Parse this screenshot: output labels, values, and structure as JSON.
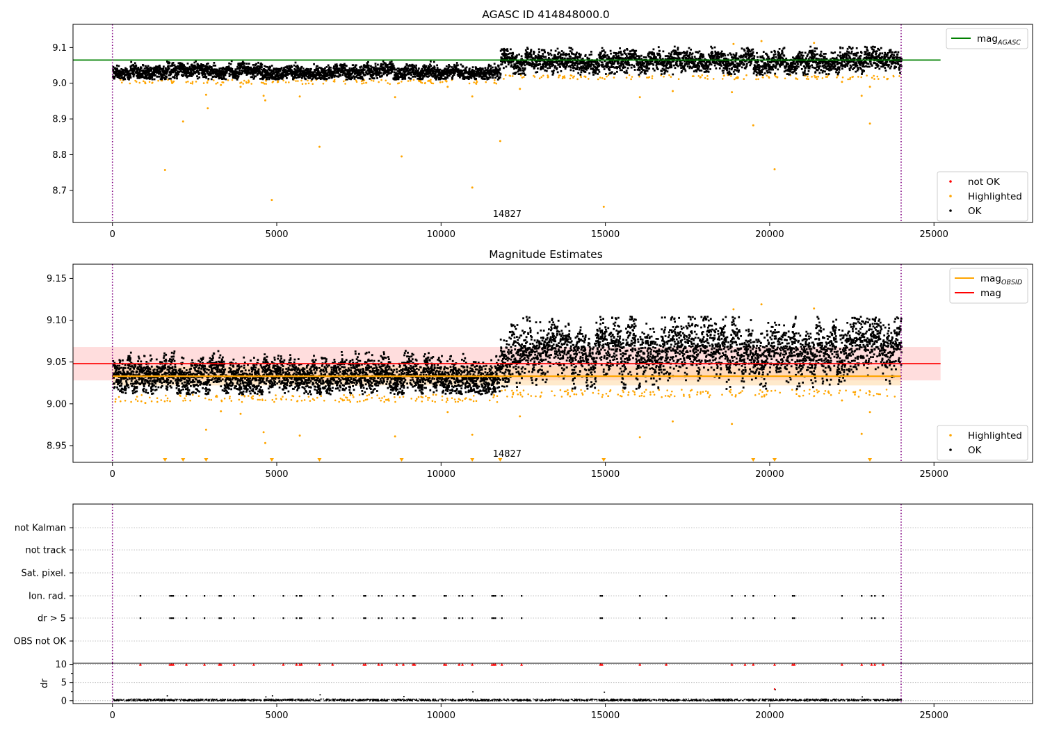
{
  "chart_data": [
    {
      "type": "scatter",
      "title": "AGASC ID 414848000.0",
      "xlim": [
        -1200,
        28000
      ],
      "ylim": [
        8.61,
        9.165
      ],
      "xticks": [
        0,
        5000,
        10000,
        15000,
        20000,
        25000
      ],
      "yticks": [
        8.7,
        8.8,
        8.9,
        9.0,
        9.1
      ],
      "vlines": [
        0,
        24000
      ],
      "annotation": "14827",
      "annotation_x": 11800,
      "mag_agasc": 9.065,
      "segments": [
        {
          "x0": 0,
          "x1": 11800,
          "center": 9.035,
          "lo": 9.012,
          "hi": 9.065
        },
        {
          "x0": 11800,
          "x1": 24000,
          "center": 9.063,
          "lo": 9.025,
          "hi": 9.105
        }
      ],
      "highlighted_points": [
        [
          1000,
          9.0
        ],
        [
          1600,
          8.757
        ],
        [
          2150,
          8.893
        ],
        [
          2850,
          8.968
        ],
        [
          2900,
          8.93
        ],
        [
          3300,
          8.995
        ],
        [
          3900,
          8.99
        ],
        [
          4600,
          8.965
        ],
        [
          4650,
          8.952
        ],
        [
          4850,
          8.673
        ],
        [
          5700,
          8.963
        ],
        [
          6300,
          8.822
        ],
        [
          8600,
          8.961
        ],
        [
          8800,
          8.795
        ],
        [
          10200,
          8.99
        ],
        [
          10950,
          8.708
        ],
        [
          10950,
          8.963
        ],
        [
          11800,
          8.838
        ],
        [
          12400,
          8.984
        ],
        [
          14950,
          8.654
        ],
        [
          16050,
          8.961
        ],
        [
          17050,
          8.978
        ],
        [
          18850,
          8.975
        ],
        [
          18900,
          9.11
        ],
        [
          19500,
          8.882
        ],
        [
          19750,
          9.118
        ],
        [
          20150,
          8.759
        ],
        [
          21350,
          9.113
        ],
        [
          22200,
          9.004
        ],
        [
          22800,
          8.965
        ],
        [
          23050,
          8.99
        ],
        [
          23050,
          8.887
        ]
      ],
      "series": [
        {
          "name": "mag_AGASC",
          "color": "#008000",
          "kind": "line"
        },
        {
          "name": "not OK",
          "color": "#ff0000",
          "kind": "marker"
        },
        {
          "name": "Highlighted",
          "color": "#ffa500",
          "kind": "marker"
        },
        {
          "name": "OK",
          "color": "#000000",
          "kind": "marker"
        }
      ],
      "legend_upper": "upper right",
      "legend_lower": "lower right"
    },
    {
      "type": "scatter",
      "title": "Magnitude Estimates",
      "xlim": [
        -1200,
        28000
      ],
      "ylim": [
        8.93,
        9.167
      ],
      "xticks": [
        0,
        5000,
        10000,
        15000,
        20000,
        25000
      ],
      "yticks": [
        8.95,
        9.0,
        9.05,
        9.1,
        9.15
      ],
      "vlines": [
        0,
        24000
      ],
      "annotation": "14827",
      "annotation_x": 11800,
      "mag": 9.048,
      "mag_band": [
        9.028,
        9.068
      ],
      "mag_obsid": 9.033,
      "mag_obsid_band": [
        9.022,
        9.045
      ],
      "segments": [
        {
          "x0": 0,
          "x1": 11800,
          "center": 9.035,
          "lo": 9.012,
          "hi": 9.065
        },
        {
          "x0": 11800,
          "x1": 24000,
          "center": 9.063,
          "lo": 9.018,
          "hi": 9.105
        }
      ],
      "highlighted_points": [
        [
          1000,
          9.001
        ],
        [
          2850,
          8.969
        ],
        [
          3300,
          8.991
        ],
        [
          3900,
          8.988
        ],
        [
          4600,
          8.966
        ],
        [
          4650,
          8.953
        ],
        [
          5700,
          8.962
        ],
        [
          8600,
          8.961
        ],
        [
          10200,
          8.99
        ],
        [
          10950,
          8.963
        ],
        [
          12400,
          8.985
        ],
        [
          16050,
          8.96
        ],
        [
          17050,
          8.979
        ],
        [
          18850,
          8.976
        ],
        [
          18900,
          9.113
        ],
        [
          19750,
          9.119
        ],
        [
          21350,
          9.114
        ],
        [
          22200,
          9.004
        ],
        [
          22800,
          8.964
        ],
        [
          23050,
          8.99
        ]
      ],
      "below_range_markers": [
        1600,
        2150,
        2850,
        4850,
        6300,
        8800,
        10950,
        11800,
        14950,
        19500,
        20150,
        23050
      ],
      "series": [
        {
          "name": "mag_OBSID",
          "color": "#ffa500",
          "kind": "line"
        },
        {
          "name": "mag",
          "color": "#ff0000",
          "kind": "line"
        },
        {
          "name": "Highlighted",
          "color": "#ffa500",
          "kind": "marker"
        },
        {
          "name": "OK",
          "color": "#000000",
          "kind": "marker"
        }
      ],
      "legend_upper": "upper right",
      "legend_lower": "lower right"
    },
    {
      "type": "scatter",
      "title": "",
      "xlim": [
        -1200,
        28000
      ],
      "categories": [
        "not Kalman",
        "not track",
        "Sat. pixel.",
        "Ion. rad.",
        "dr > 5",
        "OBS not OK"
      ],
      "flag_x": [
        850,
        1750,
        1800,
        1850,
        2250,
        2800,
        3250,
        3300,
        3700,
        4300,
        5200,
        5600,
        5700,
        5750,
        6300,
        6700,
        7650,
        7700,
        8100,
        8200,
        8650,
        8850,
        9150,
        9200,
        10100,
        10150,
        10550,
        10650,
        10950,
        11550,
        11600,
        11650,
        11850,
        12450,
        14850,
        14900,
        16050,
        16850,
        18850,
        19250,
        19500,
        20150,
        20700,
        20750,
        22200,
        22800,
        23100,
        23200,
        23450
      ],
      "vlines": [
        0,
        24000
      ],
      "dr_ylim": [
        -0.8,
        10.3
      ],
      "dr_yticks": [
        0,
        5,
        10
      ],
      "dr_ylabel": "dr",
      "dr_outliers": [
        [
          1650,
          1.5
        ],
        [
          4650,
          1.2
        ],
        [
          4850,
          1.5
        ],
        [
          6300,
          1.8
        ],
        [
          8850,
          1.3
        ],
        [
          10950,
          2.6
        ],
        [
          14950,
          2.5
        ],
        [
          20150,
          3.2
        ],
        [
          22800,
          1.2
        ]
      ],
      "xticks": [
        0,
        5000,
        10000,
        15000,
        20000,
        25000
      ]
    }
  ],
  "legends": {
    "p1_upper": [
      {
        "text": "mag",
        "sub": "AGASC",
        "color": "#008000"
      }
    ],
    "p1_lower": [
      {
        "text": "not OK",
        "color": "#ff0000"
      },
      {
        "text": "Highlighted",
        "color": "#ffa500"
      },
      {
        "text": "OK",
        "color": "#000000"
      }
    ],
    "p2_upper": [
      {
        "text": "mag",
        "sub": "OBSID",
        "color": "#ffa500"
      },
      {
        "text": "mag",
        "sub": "",
        "color": "#ff0000"
      }
    ],
    "p2_lower": [
      {
        "text": "Highlighted",
        "color": "#ffa500"
      },
      {
        "text": "OK",
        "color": "#000000"
      }
    ]
  },
  "colors": {
    "vline": "#800080",
    "agasc_line": "#008000",
    "mag_line": "#ff0000",
    "obsid_line": "#ffa500",
    "highlight": "#ffa500",
    "ok": "#000000",
    "not_ok": "#ff0000",
    "grid": "#b0b0b0"
  }
}
